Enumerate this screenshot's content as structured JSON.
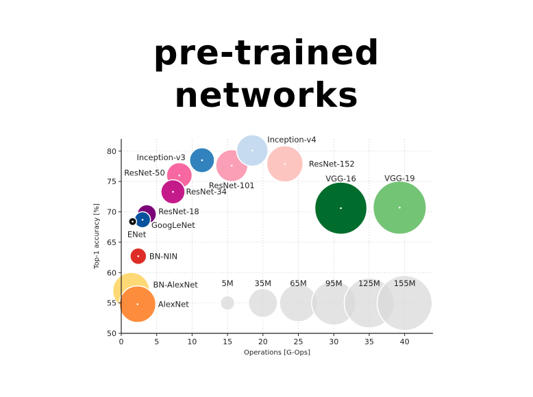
{
  "slide": {
    "title_line1": "pre-trained",
    "title_line2": "networks"
  },
  "chart_data": {
    "type": "scatter",
    "xlabel": "Operations [G-Ops]",
    "ylabel": "Top-1 accuracy [%]",
    "xlim": [
      0,
      44
    ],
    "ylim": [
      50,
      82
    ],
    "xticks": [
      0,
      5,
      10,
      15,
      20,
      25,
      30,
      35,
      40
    ],
    "yticks": [
      50,
      55,
      60,
      65,
      70,
      75,
      80
    ],
    "grid": true,
    "points": [
      {
        "label": "AlexNet",
        "x": 2.3,
        "y": 54.8,
        "params_m": 61,
        "color": "#fd8d3c"
      },
      {
        "label": "BN-AlexNet",
        "x": 1.4,
        "y": 57.0,
        "params_m": 62,
        "color": "#fed976"
      },
      {
        "label": "BN-NIN",
        "x": 2.4,
        "y": 62.7,
        "params_m": 7.6,
        "color": "#de2d26"
      },
      {
        "label": "ENet",
        "x": 1.6,
        "y": 68.4,
        "params_m": 0.4,
        "color": "#111111"
      },
      {
        "label": "GoogLeNet",
        "x": 3.0,
        "y": 68.7,
        "params_m": 7,
        "color": "#08519c"
      },
      {
        "label": "ResNet-18",
        "x": 3.6,
        "y": 69.6,
        "params_m": 11.7,
        "color": "#7a0177"
      },
      {
        "label": "ResNet-34",
        "x": 7.3,
        "y": 73.3,
        "params_m": 21.8,
        "color": "#c51b8a"
      },
      {
        "label": "ResNet-50",
        "x": 8.2,
        "y": 76.0,
        "params_m": 25.6,
        "color": "#f768a1"
      },
      {
        "label": "Inception-v3",
        "x": 11.4,
        "y": 78.5,
        "params_m": 23.8,
        "color": "#3182bd"
      },
      {
        "label": "ResNet-101",
        "x": 15.6,
        "y": 77.6,
        "params_m": 44.5,
        "color": "#fa9fb5"
      },
      {
        "label": "Inception-v4",
        "x": 18.5,
        "y": 80.1,
        "params_m": 42.7,
        "color": "#c6dbef"
      },
      {
        "label": "ResNet-152",
        "x": 23.1,
        "y": 77.9,
        "params_m": 60.2,
        "color": "#fcc5c0"
      },
      {
        "label": "VGG-16",
        "x": 31.0,
        "y": 70.6,
        "params_m": 138,
        "color": "#006d2c"
      },
      {
        "label": "VGG-19",
        "x": 39.3,
        "y": 70.7,
        "params_m": 144,
        "color": "#74c476"
      }
    ],
    "size_legend": [
      {
        "label": "5M",
        "x": 15,
        "y": 55,
        "params_m": 5
      },
      {
        "label": "35M",
        "x": 20,
        "y": 55,
        "params_m": 35
      },
      {
        "label": "65M",
        "x": 25,
        "y": 55,
        "params_m": 65
      },
      {
        "label": "95M",
        "x": 30,
        "y": 55,
        "params_m": 95
      },
      {
        "label": "125M",
        "x": 35,
        "y": 55,
        "params_m": 125
      },
      {
        "label": "155M",
        "x": 40,
        "y": 55,
        "params_m": 155
      }
    ]
  }
}
